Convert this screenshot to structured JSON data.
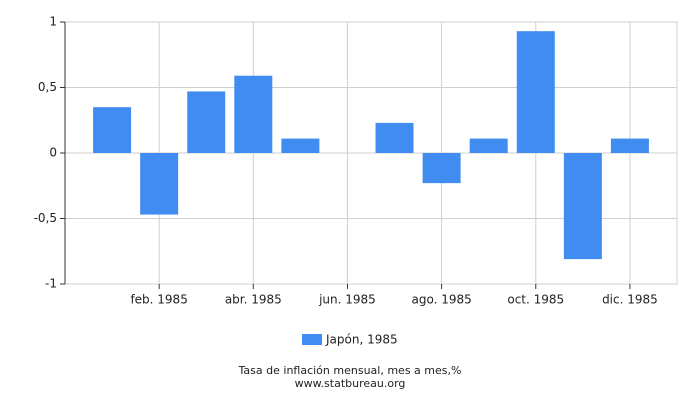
{
  "chart_data": {
    "type": "bar",
    "title": "Tasa de inflación mensual, mes a mes,%",
    "source": "www.statbureau.org",
    "categories": [
      null,
      "feb. 1985",
      null,
      "abr. 1985",
      null,
      "jun. 1985",
      null,
      "ago. 1985",
      null,
      "oct. 1985",
      null,
      "dic. 1985"
    ],
    "series": [
      {
        "name": "Japón, 1985",
        "color": "#418cf0",
        "values": [
          0.35,
          -0.47,
          0.47,
          0.59,
          0.11,
          0,
          0.23,
          -0.23,
          0.11,
          0.93,
          -0.81,
          0.11
        ]
      }
    ],
    "ylim": [
      -1,
      1
    ],
    "yticks": [
      -1,
      {
        "value": -0.5,
        "label": "-0,5"
      },
      0,
      {
        "value": 0.5,
        "label": "0,5"
      },
      1
    ],
    "grid": true
  }
}
